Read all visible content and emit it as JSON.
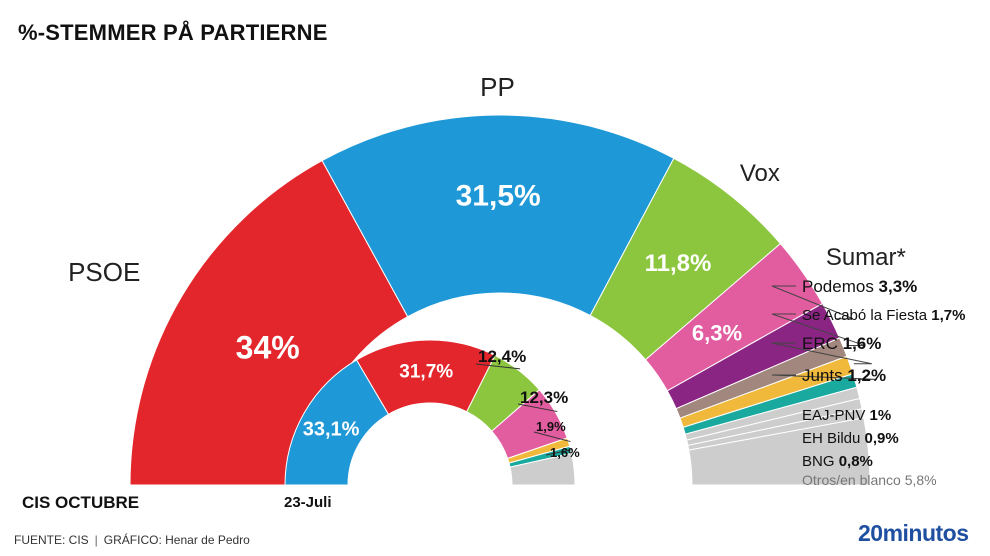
{
  "header": {
    "title": "%-STEMMER PÅ  PARTIERNE"
  },
  "footer": {
    "source": "FUENTE: CIS",
    "separator": "|",
    "graphic": "GRÁFICO: Henar de Pedro",
    "brand": "20minutos"
  },
  "colors": {
    "PSOE": "#e3262b",
    "PP": "#1f98d7",
    "Vox": "#8cc63f",
    "Sumar": "#e25ca0",
    "Podemos": "#8b2584",
    "Se Acabó la Fiesta": "#a1877d",
    "ERC": "#f0b93b",
    "Junts": "#1aa99f",
    "Otros": "#cdcdcd",
    "brand": "#1f4fa0"
  },
  "chart_data": [
    {
      "type": "pie",
      "subtype": "semicircle-donut",
      "caption": "CIS OCTUBRE",
      "unit": "%",
      "slices": [
        {
          "name": "PSOE",
          "value": 34,
          "label": "34%"
        },
        {
          "name": "PP",
          "value": 31.5,
          "label": "31,5%"
        },
        {
          "name": "Vox",
          "value": 11.8,
          "label": "11,8%"
        },
        {
          "name": "Sumar*",
          "value": 6.3,
          "label": "6,3%"
        },
        {
          "name": "Podemos",
          "value": 3.3,
          "label": "3,3%"
        },
        {
          "name": "Se Acabó la Fiesta",
          "value": 1.7,
          "label": "1,7%"
        },
        {
          "name": "ERC",
          "value": 1.6,
          "label": "1,6%"
        },
        {
          "name": "Junts",
          "value": 1.2,
          "label": "1,2%"
        },
        {
          "name": "EAJ-PNV",
          "value": 1,
          "label": "1%"
        },
        {
          "name": "EH Bildu",
          "value": 0.9,
          "label": "0,9%"
        },
        {
          "name": "BNG",
          "value": 0.8,
          "label": "0,8%"
        },
        {
          "name": "Otros/en blanco",
          "value": 5.8,
          "label": "5,8%"
        }
      ]
    },
    {
      "type": "pie",
      "subtype": "semicircle-donut",
      "caption": "23-Juli",
      "unit": "%",
      "slices": [
        {
          "name": "PP",
          "value": 33.1,
          "label": "33,1%"
        },
        {
          "name": "PSOE",
          "value": 31.7,
          "label": "31,7%"
        },
        {
          "name": "Vox",
          "value": 12.4,
          "label": "12,4%"
        },
        {
          "name": "Sumar",
          "value": 12.3,
          "label": "12,3%"
        },
        {
          "name": "ERC",
          "value": 1.9,
          "label": "1,9%"
        },
        {
          "name": "Junts",
          "value": 1.6,
          "label": "1,6%"
        },
        {
          "name": "Otros",
          "value": 7
        }
      ]
    }
  ]
}
